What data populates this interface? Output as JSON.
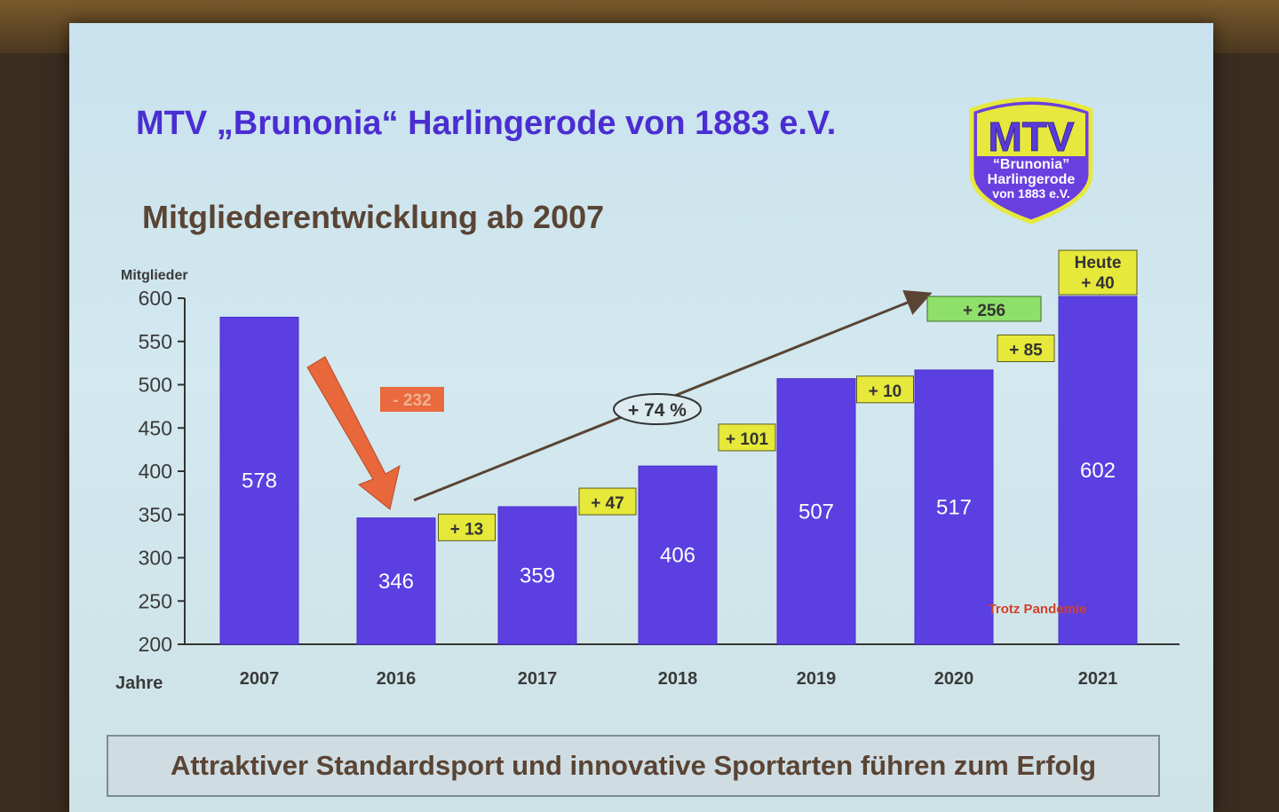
{
  "slide": {
    "title": "MTV „Brunonia“ Harlingerode von 1883 e.V.",
    "subtitle": "Mitgliederentwicklung ab 2007",
    "footer": "Attraktiver Standardsport und innovative Sportarten führen zum Erfolg"
  },
  "logo": {
    "line1": "MTV",
    "line2": "“Brunonia”",
    "line3": "Harlingerode",
    "line4": "von 1883 e.V."
  },
  "colors": {
    "bar": "#5b3fe0",
    "bar_dark": "#4b2fcf",
    "delta_box": "#e6e83a",
    "loss_box": "#e86a3e",
    "growth_box": "#8fe06a",
    "arrow_down": "#e8683c",
    "trend_line": "#5a4434"
  },
  "chart_data": {
    "type": "bar",
    "ylabel": "Mitglieder",
    "xlabel": "Jahre",
    "ylim": [
      200,
      600
    ],
    "yticks": [
      600,
      550,
      500,
      450,
      400,
      350,
      300,
      250,
      200
    ],
    "categories": [
      "2007",
      "2016",
      "2017",
      "2018",
      "2019",
      "2020",
      "2021"
    ],
    "values": [
      578,
      346,
      359,
      406,
      507,
      517,
      602
    ],
    "value_labels": [
      "578",
      "346",
      "359",
      "406",
      "507",
      "517",
      "602"
    ],
    "deltas": [
      "+ 13",
      "+ 47",
      "+ 101",
      "+ 10",
      "+ 85"
    ],
    "annotations": {
      "loss": "- 232",
      "growth_percent": "+ 74 %",
      "growth_total": "+ 256",
      "today_line1": "Heute",
      "today_line2": "+ 40",
      "pandemic": "Trotz Pandemie"
    }
  }
}
